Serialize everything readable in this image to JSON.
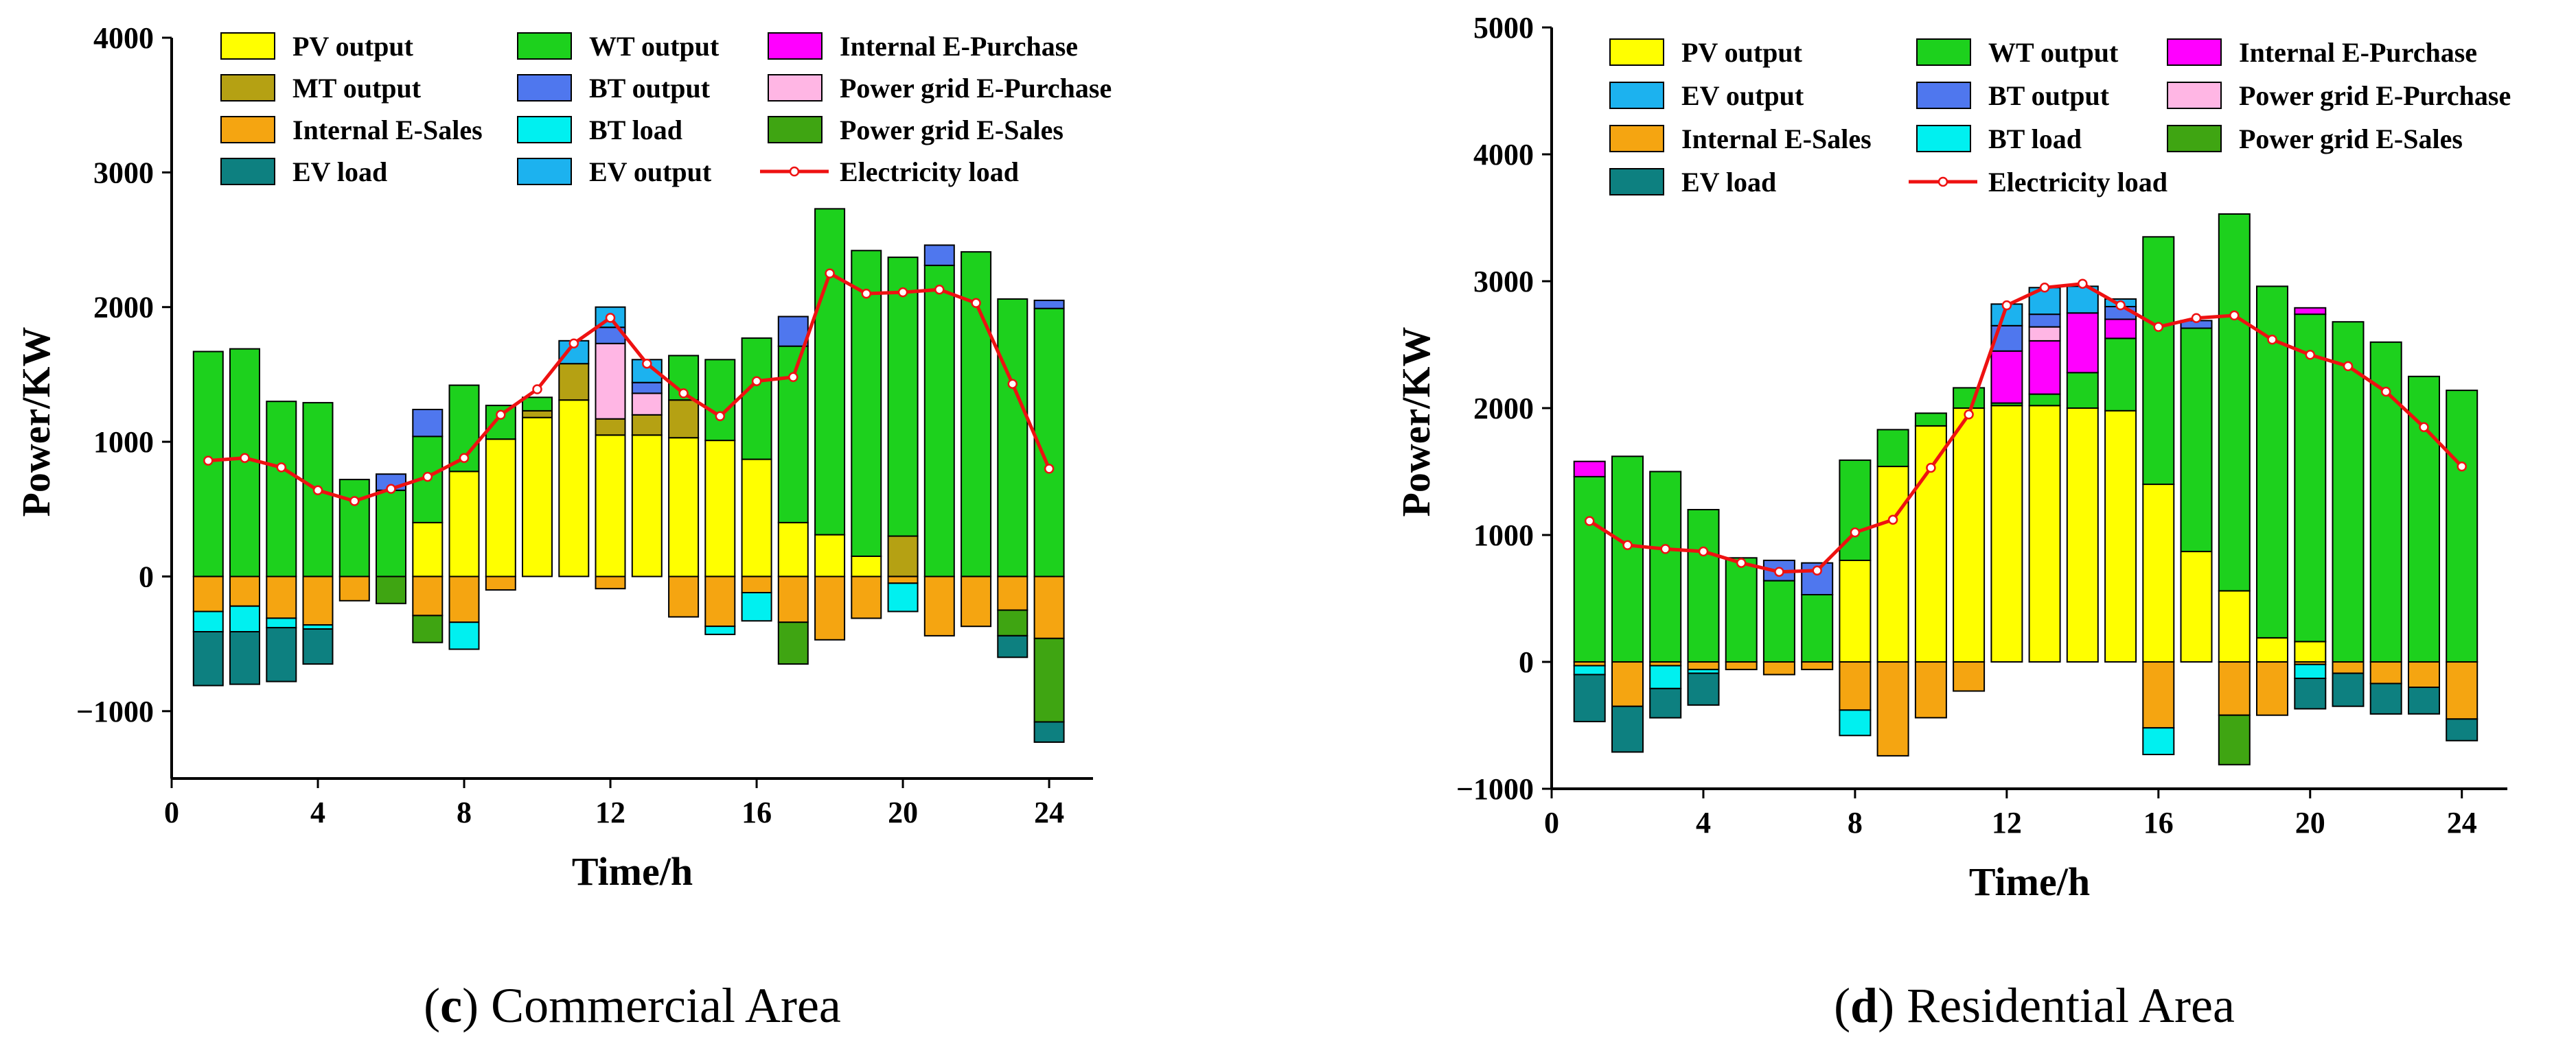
{
  "chart_data": [
    {
      "id": "c",
      "type": "bar",
      "stacked": true,
      "caption": {
        "letter": "c",
        "text": "Commercial Area"
      },
      "xlabel": "Time/h",
      "ylabel": "Power/KW",
      "xlim": [
        0,
        25.2
      ],
      "ylim": [
        -1500,
        4000
      ],
      "xticks": [
        0,
        4,
        8,
        12,
        16,
        20,
        24
      ],
      "yticks": [
        -1000,
        0,
        1000,
        2000,
        3000,
        4000
      ],
      "categories": [
        1,
        2,
        3,
        4,
        5,
        6,
        7,
        8,
        9,
        10,
        11,
        12,
        13,
        14,
        15,
        16,
        17,
        18,
        19,
        20,
        21,
        22,
        23,
        24
      ],
      "legend": {
        "placement": "top-left",
        "columns": 3,
        "entries": [
          "PV output",
          "WT output",
          "Internal E-Purchase",
          "MT output",
          "BT output",
          "Power grid E-Purchase",
          "Internal E-Sales",
          "BT load",
          "Power grid E-Sales",
          "EV load",
          "EV output",
          "Electricity load"
        ]
      },
      "series": [
        {
          "name": "PV output",
          "color": "#ffff00",
          "values": [
            0,
            0,
            0,
            0,
            0,
            0,
            400,
            780,
            1020,
            1180,
            1310,
            1050,
            1050,
            1030,
            1010,
            870,
            400,
            310,
            150,
            0,
            0,
            0,
            0,
            0
          ]
        },
        {
          "name": "MT output",
          "color": "#b5a113",
          "values": [
            0,
            0,
            0,
            0,
            0,
            0,
            0,
            0,
            0,
            50,
            270,
            120,
            150,
            280,
            0,
            0,
            0,
            0,
            0,
            300,
            0,
            0,
            0,
            0
          ]
        },
        {
          "name": "Internal E-Purchase",
          "color": "#ff00ff",
          "values": [
            0,
            0,
            0,
            0,
            0,
            0,
            0,
            0,
            0,
            0,
            0,
            0,
            0,
            0,
            0,
            0,
            0,
            0,
            0,
            0,
            0,
            0,
            0,
            0
          ]
        },
        {
          "name": "Power grid E-Purchase",
          "color": "#ffb6e4",
          "values": [
            0,
            0,
            0,
            0,
            0,
            0,
            0,
            0,
            0,
            0,
            0,
            560,
            160,
            0,
            0,
            0,
            0,
            0,
            0,
            0,
            0,
            0,
            0,
            0
          ]
        },
        {
          "name": "WT output",
          "color": "#1dd11d",
          "values": [
            1670,
            1690,
            1300,
            1290,
            720,
            640,
            640,
            640,
            250,
            100,
            0,
            0,
            0,
            330,
            600,
            900,
            1310,
            2420,
            2270,
            2070,
            2310,
            2410,
            2060,
            1990
          ]
        },
        {
          "name": "BT output",
          "color": "#4f77ee",
          "values": [
            0,
            0,
            0,
            0,
            0,
            120,
            200,
            0,
            0,
            0,
            0,
            120,
            80,
            0,
            0,
            0,
            220,
            0,
            0,
            0,
            150,
            0,
            0,
            60
          ]
        },
        {
          "name": "EV output",
          "color": "#1cb2ef",
          "values": [
            0,
            0,
            0,
            0,
            0,
            0,
            0,
            0,
            0,
            0,
            170,
            150,
            170,
            0,
            0,
            0,
            0,
            0,
            0,
            0,
            0,
            0,
            0,
            0
          ]
        },
        {
          "name": "Internal E-Sales",
          "color": "#f5a511",
          "values": [
            -260,
            -220,
            -310,
            -360,
            -180,
            0,
            -290,
            -340,
            -100,
            0,
            0,
            -90,
            0,
            -300,
            -370,
            -120,
            -340,
            -470,
            -310,
            -50,
            -440,
            -370,
            -250,
            -460
          ]
        },
        {
          "name": "BT load",
          "color": "#00f0f0",
          "values": [
            -150,
            -190,
            -70,
            -30,
            0,
            0,
            0,
            -200,
            0,
            0,
            0,
            0,
            0,
            0,
            -60,
            -210,
            0,
            0,
            0,
            -210,
            0,
            0,
            0,
            0
          ]
        },
        {
          "name": "Power grid E-Sales",
          "color": "#3fa512",
          "values": [
            0,
            0,
            0,
            0,
            0,
            -200,
            -200,
            0,
            0,
            0,
            0,
            0,
            0,
            0,
            0,
            0,
            -310,
            0,
            0,
            0,
            0,
            0,
            -190,
            -620
          ]
        },
        {
          "name": "EV load",
          "color": "#0d8080",
          "values": [
            -400,
            -390,
            -400,
            -260,
            0,
            0,
            0,
            0,
            0,
            0,
            0,
            0,
            0,
            0,
            0,
            0,
            0,
            0,
            0,
            0,
            0,
            0,
            -160,
            -150
          ]
        }
      ],
      "line": {
        "name": "Electricity load",
        "color": "#ee1111",
        "values": [
          860,
          880,
          810,
          640,
          560,
          650,
          740,
          880,
          1200,
          1390,
          1730,
          1920,
          1580,
          1360,
          1190,
          1450,
          1480,
          2250,
          2100,
          2110,
          2130,
          2030,
          1430,
          800
        ]
      }
    },
    {
      "id": "d",
      "type": "bar",
      "stacked": true,
      "caption": {
        "letter": "d",
        "text": "Residential Area"
      },
      "xlabel": "Time/h",
      "ylabel": "Power/KW",
      "xlim": [
        0,
        25.2
      ],
      "ylim": [
        -1000,
        5000
      ],
      "xticks": [
        0,
        4,
        8,
        12,
        16,
        20,
        24
      ],
      "yticks": [
        -1000,
        0,
        1000,
        2000,
        3000,
        4000,
        5000
      ],
      "categories": [
        1,
        2,
        3,
        4,
        5,
        6,
        7,
        8,
        9,
        10,
        11,
        12,
        13,
        14,
        15,
        16,
        17,
        18,
        19,
        20,
        21,
        22,
        23,
        24
      ],
      "legend": {
        "placement": "top-left",
        "columns": 3,
        "entries": [
          "PV output",
          "WT output",
          "Internal E-Purchase",
          "EV output",
          "BT output",
          "Power grid E-Purchase",
          "Internal E-Sales",
          "BT load",
          "Power grid E-Sales",
          "EV load",
          "Electricity load"
        ]
      },
      "series": [
        {
          "name": "PV output",
          "color": "#ffff00",
          "values": [
            0,
            0,
            0,
            0,
            0,
            0,
            0,
            800,
            1540,
            1860,
            2000,
            2020,
            2020,
            2000,
            1980,
            1400,
            870,
            560,
            190,
            160,
            0,
            0,
            0,
            0
          ]
        },
        {
          "name": "WT output",
          "color": "#1dd11d",
          "values": [
            1460,
            1620,
            1500,
            1200,
            820,
            640,
            530,
            790,
            290,
            100,
            160,
            20,
            90,
            280,
            570,
            1950,
            1760,
            2970,
            2770,
            2580,
            2680,
            2520,
            2250,
            2140
          ]
        },
        {
          "name": "Internal E-Purchase",
          "color": "#ff00ff",
          "values": [
            120,
            0,
            0,
            0,
            0,
            0,
            0,
            0,
            0,
            0,
            0,
            410,
            420,
            470,
            150,
            0,
            0,
            0,
            0,
            50,
            0,
            0,
            0,
            0
          ]
        },
        {
          "name": "Power grid E-Purchase",
          "color": "#ffb6e4",
          "values": [
            0,
            0,
            0,
            0,
            0,
            0,
            0,
            0,
            0,
            0,
            0,
            0,
            110,
            0,
            0,
            0,
            0,
            0,
            0,
            0,
            0,
            0,
            0,
            0
          ]
        },
        {
          "name": "BT output",
          "color": "#4f77ee",
          "values": [
            0,
            0,
            0,
            0,
            0,
            160,
            250,
            0,
            0,
            0,
            0,
            200,
            100,
            0,
            100,
            0,
            60,
            0,
            0,
            0,
            0,
            0,
            0,
            0
          ]
        },
        {
          "name": "EV output",
          "color": "#1cb2ef",
          "values": [
            0,
            0,
            0,
            0,
            0,
            0,
            0,
            0,
            0,
            0,
            0,
            170,
            210,
            210,
            60,
            0,
            0,
            0,
            0,
            0,
            0,
            0,
            0,
            0
          ]
        },
        {
          "name": "Internal E-Sales",
          "color": "#f5a511",
          "values": [
            -30,
            -350,
            -30,
            -60,
            -60,
            -100,
            -60,
            -380,
            -740,
            -440,
            -230,
            0,
            0,
            0,
            0,
            -520,
            0,
            -420,
            -420,
            -20,
            -90,
            -170,
            -200,
            -450
          ]
        },
        {
          "name": "BT load",
          "color": "#00f0f0",
          "values": [
            -70,
            0,
            -180,
            -30,
            0,
            0,
            0,
            -200,
            0,
            0,
            0,
            0,
            0,
            0,
            0,
            -210,
            0,
            0,
            0,
            -110,
            0,
            0,
            0,
            0
          ]
        },
        {
          "name": "Power grid E-Sales",
          "color": "#3fa512",
          "values": [
            0,
            0,
            0,
            0,
            0,
            0,
            0,
            0,
            0,
            0,
            0,
            0,
            0,
            0,
            0,
            0,
            0,
            -390,
            0,
            0,
            0,
            0,
            0,
            0
          ]
        },
        {
          "name": "EV load",
          "color": "#0d8080",
          "values": [
            -370,
            -360,
            -230,
            -250,
            0,
            0,
            0,
            0,
            0,
            0,
            0,
            0,
            0,
            0,
            0,
            0,
            0,
            0,
            0,
            -240,
            -260,
            -240,
            -210,
            -170
          ]
        }
      ],
      "line": {
        "name": "Electricity load",
        "color": "#ee1111",
        "values": [
          1110,
          920,
          890,
          870,
          780,
          710,
          720,
          1020,
          1120,
          1530,
          1950,
          2810,
          2950,
          2980,
          2810,
          2640,
          2710,
          2730,
          2540,
          2420,
          2330,
          2130,
          1850,
          1540
        ]
      }
    }
  ]
}
